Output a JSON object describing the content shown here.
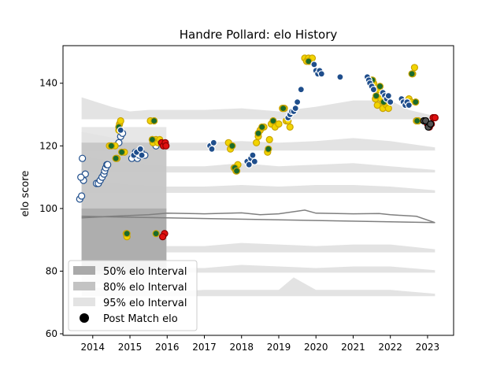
{
  "chart_data": {
    "type": "scatter",
    "title": "Handre Pollard: elo History",
    "ylabel": "elo score",
    "xlabel": "",
    "xlim": [
      2013.2,
      2023.7
    ],
    "ylim": [
      59.5,
      152
    ],
    "x_ticks": [
      2014,
      2015,
      2016,
      2017,
      2018,
      2019,
      2020,
      2021,
      2022,
      2023
    ],
    "y_ticks": [
      60,
      80,
      100,
      120,
      140
    ],
    "grid": false,
    "legend": {
      "placement": "lower-left",
      "entries": [
        {
          "label": "50% elo Interval",
          "kind": "patch",
          "color": "#a9a9a9"
        },
        {
          "label": "80% elo Interval",
          "kind": "patch",
          "color": "#c3c3c3"
        },
        {
          "label": "95% elo Interval",
          "kind": "patch",
          "color": "#e3e3e3"
        },
        {
          "label": "Post Match elo",
          "kind": "marker",
          "color": "#000000"
        }
      ]
    },
    "interval_bands": [
      {
        "name": "50% elo Interval",
        "color": "#a9a9a9",
        "x": [
          2013.7,
          2015.98
        ],
        "upper": [
          100,
          100
        ],
        "lower": [
          80,
          80
        ]
      },
      {
        "name": "80% elo Interval",
        "color": "#c3c3c3",
        "x": [
          2013.7,
          2015.98
        ],
        "upper": [
          121,
          121
        ],
        "lower": [
          79,
          79
        ]
      },
      {
        "name": "95% elo Interval",
        "color": "#e3e3e3",
        "x": [
          2013.7,
          2015.98
        ],
        "upper": [
          126,
          126
        ],
        "lower": [
          76,
          76
        ]
      }
    ],
    "distribution_ridges": [
      {
        "baseline": 128.5,
        "x": [
          2013.7,
          2014.5,
          2015,
          2015.5,
          2016,
          2017,
          2018,
          2019,
          2020,
          2021,
          2022,
          2022.5,
          2023.2
        ],
        "height": [
          7,
          4,
          2.5,
          3,
          3,
          3,
          3.5,
          2.5,
          4,
          6,
          6,
          3,
          1
        ]
      },
      {
        "baseline": 118.5,
        "x": [
          2013.7,
          2015,
          2016,
          2017,
          2018,
          2019,
          2020,
          2021,
          2022,
          2023.2
        ],
        "height": [
          6,
          3,
          2.5,
          2.5,
          3,
          2.5,
          3,
          4,
          3,
          1
        ]
      },
      {
        "baseline": 111.5,
        "x": [
          2013.7,
          2015,
          2016,
          2017,
          2018,
          2019,
          2020,
          2021,
          2022,
          2023.2
        ],
        "height": [
          5,
          3,
          2,
          2,
          3,
          2,
          2.5,
          3,
          2,
          0.8
        ]
      },
      {
        "baseline": 105,
        "x": [
          2013.7,
          2015,
          2016,
          2017,
          2018,
          2019,
          2020,
          2021,
          2022,
          2023.2
        ],
        "height": [
          4,
          2.5,
          2,
          2,
          2.5,
          2,
          2.5,
          2.5,
          2,
          0.8
        ]
      },
      {
        "baseline": 86,
        "x": [
          2013.7,
          2015,
          2016,
          2017,
          2018,
          2019,
          2020,
          2021,
          2022,
          2023.2
        ],
        "height": [
          4,
          2,
          2,
          2,
          3,
          2.5,
          2,
          2.5,
          2.5,
          1
        ]
      },
      {
        "baseline": 79.5,
        "x": [
          2013.7,
          2015,
          2016,
          2017,
          2018,
          2019,
          2020,
          2021,
          2022,
          2023.2
        ],
        "height": [
          3,
          2,
          1.5,
          1.5,
          2.5,
          2,
          1.5,
          2,
          2,
          0.8
        ]
      },
      {
        "baseline": 72,
        "x": [
          2013.7,
          2015,
          2016,
          2017,
          2018,
          2019,
          2019.4,
          2020,
          2021,
          2022,
          2023.2
        ],
        "height": [
          3,
          2,
          1.5,
          2,
          2,
          2,
          6,
          2,
          2,
          2,
          0.8
        ]
      }
    ],
    "median_line": {
      "color": "#7f7f7f",
      "x": [
        2013.7,
        2014.5,
        2015.5,
        2016,
        2017,
        2018,
        2018.5,
        2019,
        2019.7,
        2020,
        2021,
        2021.7,
        2022,
        2022.7,
        2023.2
      ],
      "y": [
        97,
        97.5,
        98,
        98.5,
        98.3,
        98.6,
        98,
        98.3,
        99.5,
        98.5,
        98.3,
        98.4,
        98,
        97.5,
        95.5
      ]
    },
    "mean_line": {
      "color": "#7f7f7f",
      "x": [
        2013.7,
        2023.2
      ],
      "y": [
        97.5,
        95.5
      ]
    },
    "series": [
      {
        "name": "white",
        "fill": "#ffffff",
        "edge": "#1f4e8c",
        "x": [
          2013.65,
          2013.7,
          2013.75,
          2013.8,
          2013.68,
          2013.72,
          2014.1,
          2014.15,
          2014.2,
          2014.25,
          2014.3,
          2014.32,
          2014.35,
          2014.38,
          2014.4,
          2014.7,
          2014.75,
          2014.8,
          2015.05,
          2015.1,
          2015.15,
          2015.2,
          2015.25,
          2015.3,
          2015.35,
          2015.4,
          2015.65,
          2015.7
        ],
        "y": [
          103,
          104,
          109,
          111,
          110,
          116,
          108,
          108,
          109,
          110,
          111,
          112,
          113,
          114,
          114,
          121,
          123,
          124,
          116,
          117,
          118,
          116,
          117,
          118,
          117,
          117,
          121,
          120
        ]
      },
      {
        "name": "yellow",
        "fill": "#f2d400",
        "edge": "#c9a400",
        "x": [
          2014.45,
          2014.6,
          2014.65,
          2014.7,
          2014.72,
          2014.75,
          2014.85,
          2014.9,
          2014.92,
          2015.55,
          2015.6,
          2015.62,
          2015.7,
          2015.75,
          2015.8,
          2015.85,
          2017.65,
          2017.7,
          2017.8,
          2017.85,
          2017.9,
          2018.4,
          2018.45,
          2018.5,
          2018.6,
          2018.7,
          2018.75,
          2018.8,
          2018.9,
          2019,
          2019.1,
          2019.15,
          2019.2,
          2019.25,
          2019.3,
          2019.7,
          2019.75,
          2019.8,
          2019.85,
          2019.9,
          2021.5,
          2021.55,
          2021.6,
          2021.65,
          2021.7,
          2021.75,
          2021.8,
          2021.85,
          2021.9,
          2021.95,
          2022.5,
          2022.55,
          2022.6,
          2022.65,
          2022.7,
          2022.75
        ],
        "y": [
          120,
          120,
          116,
          125,
          127,
          128,
          118,
          92,
          91,
          128,
          122,
          121,
          122,
          121,
          122,
          121,
          121,
          119,
          113,
          112,
          114,
          121,
          123,
          125,
          126,
          118,
          122,
          127,
          126,
          127,
          132,
          132,
          128,
          128,
          126,
          148,
          147,
          148,
          147,
          148,
          141,
          140,
          135,
          133,
          138,
          135,
          132,
          134,
          133,
          132,
          135,
          134,
          143,
          145,
          128,
          128
        ]
      },
      {
        "name": "darkgreen",
        "fill": "#1a6b2c",
        "edge": "#c9a400",
        "x": [
          2014.5,
          2014.62,
          2014.7,
          2014.78,
          2014.92,
          2015.6,
          2015.65,
          2015.7,
          2017.75,
          2017.82,
          2017.87,
          2018.45,
          2018.55,
          2018.72,
          2018.85,
          2019.12,
          2019.8,
          2021.52,
          2021.62,
          2021.72,
          2021.82,
          2022.58,
          2022.68,
          2022.72
        ],
        "y": [
          120,
          116,
          126,
          118,
          92,
          122,
          128,
          92,
          120,
          113,
          112,
          124,
          126,
          119,
          128,
          132,
          147,
          141,
          136,
          139,
          134,
          143,
          134,
          128
        ]
      },
      {
        "name": "blue",
        "fill": "#1f4e8c",
        "edge": "#ffffff",
        "x": [
          2014.75,
          2015.1,
          2015.18,
          2015.28,
          2015.32,
          2017.15,
          2017.2,
          2017.25,
          2018.15,
          2018.2,
          2018.25,
          2018.3,
          2018.35,
          2019.25,
          2019.3,
          2019.35,
          2019.4,
          2019.45,
          2019.5,
          2019.6,
          2019.95,
          2020,
          2020.05,
          2020.1,
          2020.15,
          2020.65,
          2021.38,
          2021.42,
          2021.45,
          2021.5,
          2021.55,
          2021.8,
          2021.85,
          2021.9,
          2021.95,
          2022.0,
          2022.3,
          2022.35,
          2022.4,
          2022.45,
          2022.5
        ],
        "y": [
          125,
          117,
          118,
          119,
          117,
          120,
          119,
          121,
          115,
          114,
          116,
          117,
          115,
          129,
          130,
          131,
          131,
          132,
          134,
          138,
          146,
          144,
          143,
          144,
          143,
          142,
          142,
          141,
          140,
          139,
          138,
          137,
          136,
          135,
          136,
          134,
          135,
          134,
          133,
          134,
          133
        ]
      },
      {
        "name": "red",
        "fill": "#e01010",
        "edge": "#8b0000",
        "x": [
          2015.85,
          2015.9,
          2015.95,
          2015.97,
          2015.93,
          2015.88,
          2023.0,
          2023.05,
          2023.1,
          2023.15,
          2023.2
        ],
        "y": [
          121,
          120,
          121,
          120,
          92,
          91,
          127,
          126,
          127,
          129,
          129
        ]
      },
      {
        "name": "grey",
        "fill": "#555555",
        "edge": "#000000",
        "x": [
          2022.9,
          2022.95,
          2023.02,
          2023.08
        ],
        "y": [
          128,
          128,
          126,
          127
        ]
      }
    ]
  }
}
